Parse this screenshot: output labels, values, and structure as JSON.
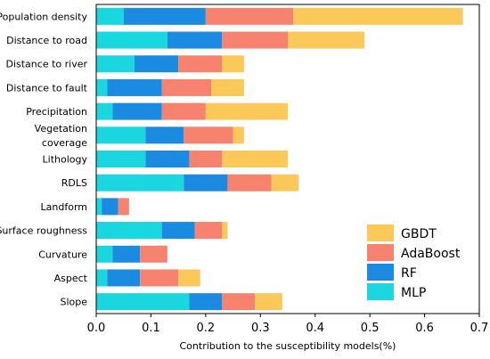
{
  "chart_data": {
    "type": "bar",
    "orientation": "horizontal",
    "stacked": true,
    "categories": [
      "Population density",
      "Distance to road",
      "Distance to river",
      "Distance to fault",
      "Precipitation",
      "Vegetation coverage",
      "Lithology",
      "RDLS",
      "Landform",
      "Surface roughness",
      "Curvature",
      "Aspect",
      "Slope"
    ],
    "category_lines": [
      [
        "Population density"
      ],
      [
        "Distance to road"
      ],
      [
        "Distance to river"
      ],
      [
        "Distance to fault"
      ],
      [
        "Precipitation"
      ],
      [
        "Vegetation",
        "coverage"
      ],
      [
        "Lithology"
      ],
      [
        "RDLS"
      ],
      [
        "Landform"
      ],
      [
        "Surface roughness"
      ],
      [
        "Curvature"
      ],
      [
        "Aspect"
      ],
      [
        "Slope"
      ]
    ],
    "series": [
      {
        "name": "MLP",
        "color": "#1ad6de",
        "values": [
          0.05,
          0.13,
          0.07,
          0.02,
          0.03,
          0.09,
          0.09,
          0.16,
          0.01,
          0.12,
          0.03,
          0.02,
          0.17
        ]
      },
      {
        "name": "RF",
        "color": "#1a8be0",
        "values": [
          0.15,
          0.1,
          0.08,
          0.1,
          0.09,
          0.07,
          0.08,
          0.08,
          0.03,
          0.06,
          0.05,
          0.06,
          0.06
        ]
      },
      {
        "name": "AdaBoost",
        "color": "#f78270",
        "values": [
          0.16,
          0.12,
          0.08,
          0.09,
          0.08,
          0.09,
          0.06,
          0.08,
          0.02,
          0.05,
          0.05,
          0.07,
          0.06
        ]
      },
      {
        "name": "GBDT",
        "color": "#fbc95a",
        "values": [
          0.31,
          0.14,
          0.04,
          0.06,
          0.15,
          0.02,
          0.12,
          0.05,
          0.0,
          0.01,
          0.0,
          0.04,
          0.05
        ]
      }
    ],
    "legend_order": [
      "GBDT",
      "AdaBoost",
      "RF",
      "MLP"
    ],
    "legend_position": "bottom-right",
    "xlabel": "Contribution to the susceptibility models(%)",
    "xlim": [
      0,
      0.7
    ],
    "xticks": [
      "0.0",
      "0.1",
      "0.2",
      "0.3",
      "0.4",
      "0.5",
      "0.6",
      "0.7"
    ],
    "grid": false
  }
}
